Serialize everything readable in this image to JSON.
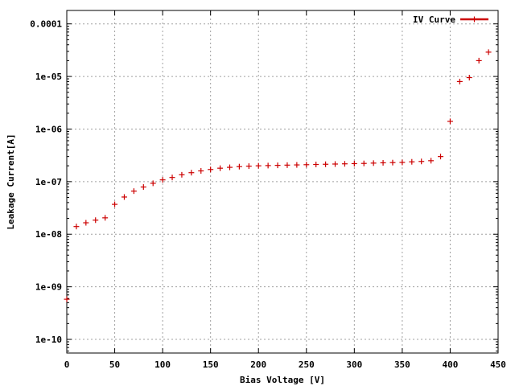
{
  "chart_data": {
    "type": "scatter",
    "xlabel": "Bias Voltage [V]",
    "ylabel": "Leakage Current[A]",
    "xlim": [
      0,
      450
    ],
    "ylim": [
      5.5e-11,
      0.00018
    ],
    "yscale": "log",
    "grid": true,
    "legend_position": "top-right",
    "x_ticks": [
      {
        "value": 0,
        "label": "0"
      },
      {
        "value": 50,
        "label": "50"
      },
      {
        "value": 100,
        "label": "100"
      },
      {
        "value": 150,
        "label": "150"
      },
      {
        "value": 200,
        "label": "200"
      },
      {
        "value": 250,
        "label": "250"
      },
      {
        "value": 300,
        "label": "300"
      },
      {
        "value": 350,
        "label": "350"
      },
      {
        "value": 400,
        "label": "400"
      },
      {
        "value": 450,
        "label": "450"
      }
    ],
    "y_ticks": [
      {
        "value": 1e-10,
        "label": "1e-10"
      },
      {
        "value": 1e-09,
        "label": "1e-09"
      },
      {
        "value": 1e-08,
        "label": "1e-08"
      },
      {
        "value": 1e-07,
        "label": "1e-07"
      },
      {
        "value": 1e-06,
        "label": "1e-06"
      },
      {
        "value": 1e-05,
        "label": "1e-05"
      },
      {
        "value": 0.0001,
        "label": "0.0001"
      }
    ],
    "series": [
      {
        "name": "IV Curve",
        "color": "#cc0000",
        "marker": "plus",
        "x": [
          0,
          10,
          20,
          30,
          40,
          50,
          60,
          70,
          80,
          90,
          100,
          110,
          120,
          130,
          140,
          150,
          160,
          170,
          180,
          190,
          200,
          210,
          220,
          230,
          240,
          250,
          260,
          270,
          280,
          290,
          300,
          310,
          320,
          330,
          340,
          350,
          360,
          370,
          380,
          390,
          400,
          410,
          420,
          430,
          440
        ],
        "y": [
          5.8e-10,
          1.4e-08,
          1.65e-08,
          1.85e-08,
          2.05e-08,
          3.7e-08,
          5.1e-08,
          6.6e-08,
          7.9e-08,
          9.3e-08,
          1.08e-07,
          1.2e-07,
          1.35e-07,
          1.48e-07,
          1.6e-07,
          1.7e-07,
          1.8e-07,
          1.87e-07,
          1.93e-07,
          1.97e-07,
          2e-07,
          2.02e-07,
          2.04e-07,
          2.06e-07,
          2.08e-07,
          2.1e-07,
          2.12e-07,
          2.14e-07,
          2.16e-07,
          2.18e-07,
          2.2e-07,
          2.22e-07,
          2.25e-07,
          2.28e-07,
          2.3e-07,
          2.32e-07,
          2.38e-07,
          2.42e-07,
          2.5e-07,
          3e-07,
          1.4e-06,
          8e-06,
          9.5e-06,
          2e-05,
          2.9e-05
        ]
      }
    ]
  }
}
